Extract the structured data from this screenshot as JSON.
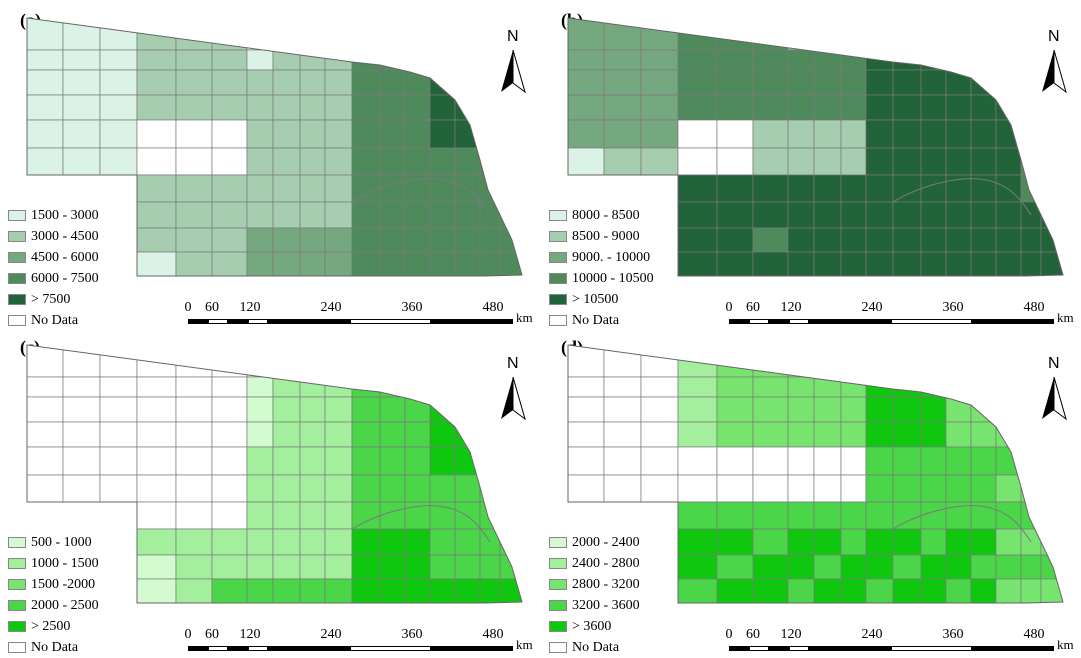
{
  "panels": [
    {
      "id": "a",
      "label": "(a)",
      "legend": [
        {
          "label": "1500 - 3000",
          "color": "#dbf2e7"
        },
        {
          "label": "3000 - 4500",
          "color": "#a6cdb0"
        },
        {
          "label": "4500 - 6000",
          "color": "#76a880"
        },
        {
          "label": "6000 - 7500",
          "color": "#4e8a5c"
        },
        {
          "label": "> 7500",
          "color": "#22633a"
        },
        {
          "label": "No Data",
          "color": "#ffffff"
        }
      ]
    },
    {
      "id": "b",
      "label": "(b)",
      "legend": [
        {
          "label": "8000 - 8500",
          "color": "#dbf2e7"
        },
        {
          "label": "8500 - 9000",
          "color": "#a6cdb0"
        },
        {
          "label": "9000. - 10000",
          "color": "#76a880"
        },
        {
          "label": "10000 - 10500",
          "color": "#4e8a5c"
        },
        {
          "label": "> 10500",
          "color": "#22633a"
        },
        {
          "label": "No Data",
          "color": "#ffffff"
        }
      ]
    },
    {
      "id": "c",
      "label": "(c)",
      "legend": [
        {
          "label": "500 - 1000",
          "color": "#d3fbcf"
        },
        {
          "label": "1000 - 1500",
          "color": "#a3ef9d"
        },
        {
          "label": "1500 -2000",
          "color": "#78e470"
        },
        {
          "label": "2000 - 2500",
          "color": "#4ad648"
        },
        {
          "label": "> 2500",
          "color": "#0fc70f"
        },
        {
          "label": "No Data",
          "color": "#ffffff"
        }
      ]
    },
    {
      "id": "d",
      "label": "(d)",
      "legend": [
        {
          "label": "2000 - 2400",
          "color": "#d3fbcf"
        },
        {
          "label": "2400 - 2800",
          "color": "#a3ef9d"
        },
        {
          "label": "2800 - 3200",
          "color": "#78e470"
        },
        {
          "label": "3200 - 3600",
          "color": "#4ad648"
        },
        {
          "label": "> 3600",
          "color": "#0fc70f"
        },
        {
          "label": "No Data",
          "color": "#ffffff"
        }
      ]
    }
  ],
  "north_label": "N",
  "scale_ticks": [
    "0",
    "60",
    "120",
    "240",
    "360",
    "480"
  ],
  "scale_unit": "km"
}
